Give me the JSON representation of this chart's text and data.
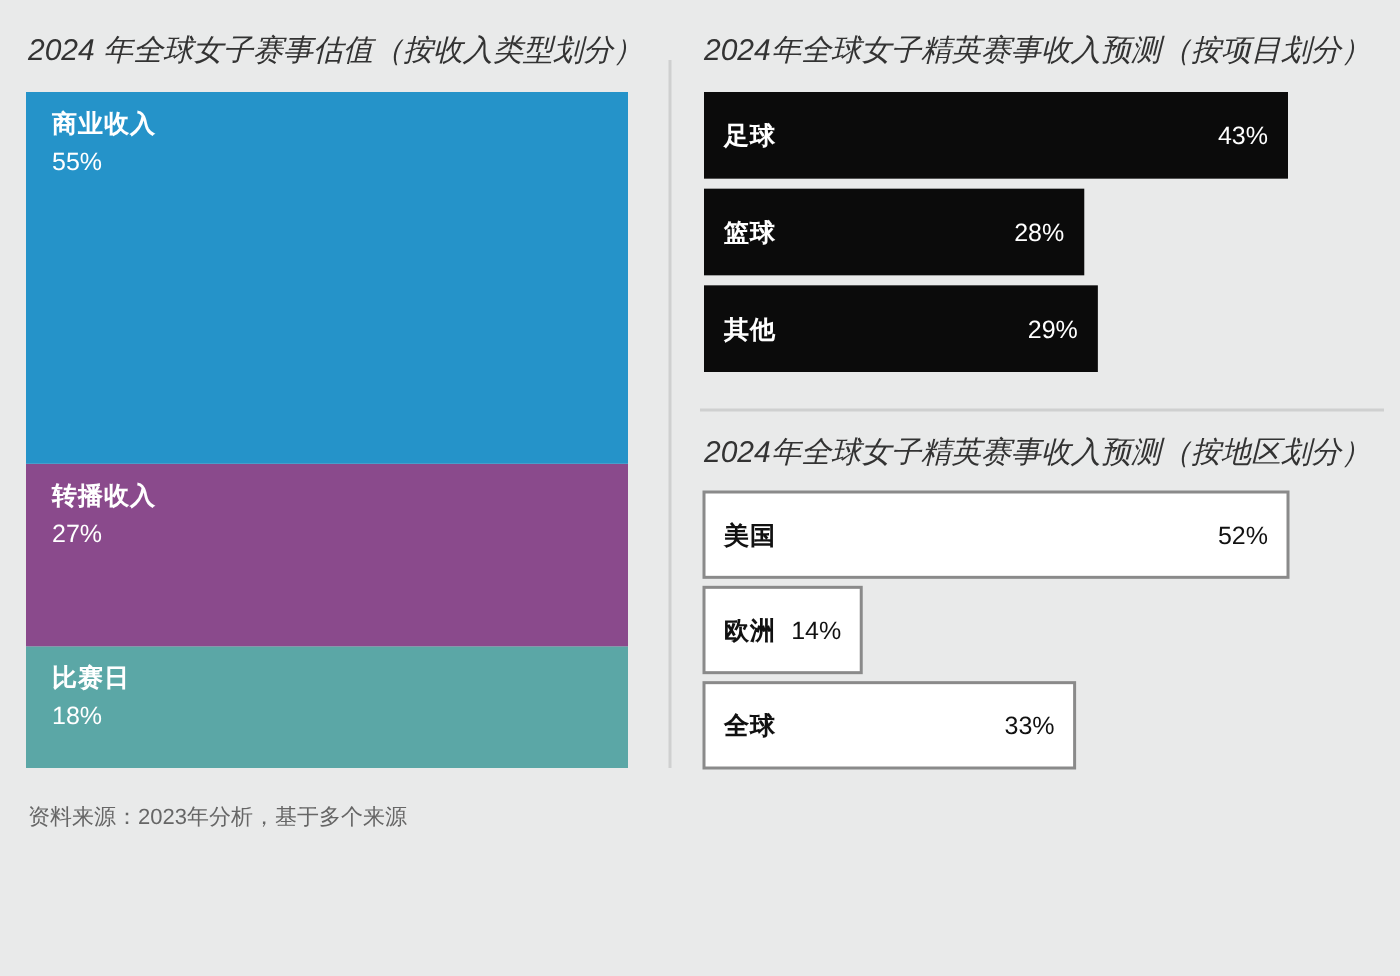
{
  "chart_data": [
    {
      "type": "bar",
      "title": "2024 年全球女子赛事估值（按收入类型划分）",
      "stacked": true,
      "categories": [
        null
      ],
      "series": [
        {
          "name": "比赛日",
          "color": "#5ba7a6",
          "values": [
            18
          ],
          "value_labels": [
            "18%"
          ]
        },
        {
          "name": "转播收入",
          "color": "#8a4a8c",
          "values": [
            27
          ],
          "value_labels": [
            "27%"
          ]
        },
        {
          "name": "商业收入",
          "color": "#2593c9",
          "values": [
            55
          ],
          "value_labels": [
            "55%"
          ]
        }
      ],
      "annotations": [
        "资料来源：2023年分析，基于多个来源"
      ]
    },
    {
      "type": "bar",
      "title": "2024年全球女子精英赛事收入预测（按项目划分）",
      "orientation": "horizontal",
      "categories": [
        "足球",
        "篮球",
        "其他"
      ],
      "values": [
        43,
        28,
        29
      ],
      "value_labels": [
        "43%",
        "28%",
        "29%"
      ],
      "color": "#0b0b0b"
    },
    {
      "type": "bar",
      "title": "2024年全球女子精英赛事收入预测（按地区划分）",
      "orientation": "horizontal",
      "categories": [
        "美国",
        "欧洲",
        "全球"
      ],
      "values": [
        52,
        14,
        33
      ],
      "value_labels": [
        "52%",
        "14%",
        "33%"
      ],
      "color": "#ffffff"
    }
  ]
}
